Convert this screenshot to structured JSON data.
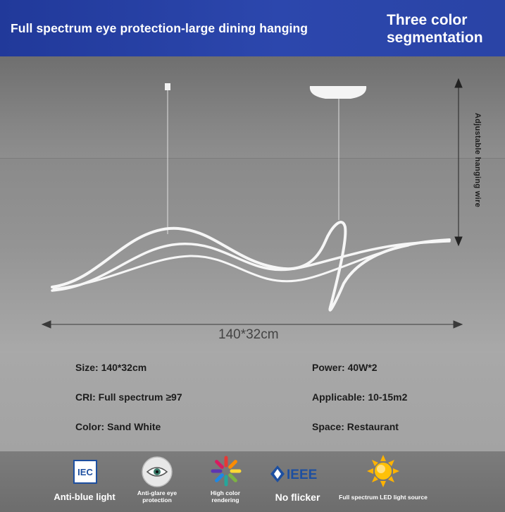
{
  "header": {
    "title": "Full spectrum eye protection-large dining hanging",
    "badge_line1": "Three color",
    "badge_line2": "segmentation"
  },
  "scene": {
    "hanging_wire_label": "Adjustable hanging wire",
    "dimension_label": "140*32cm"
  },
  "specs": {
    "size": "Size: 140*32cm",
    "power": "Power: 40W*2",
    "cri": "CRI: Full spectrum ≥97",
    "applicable": "Applicable: 10-15m2",
    "color": "Color: Sand White",
    "space": "Space: Restaurant"
  },
  "features": [
    {
      "icon": "iec-icon",
      "label": "Anti-blue light"
    },
    {
      "icon": "eye-icon",
      "label_line1": "Anti-glare eye",
      "label_line2": "protection"
    },
    {
      "icon": "color-wheel-icon",
      "label_line1": "High color",
      "label_line2": "rendering"
    },
    {
      "icon": "ieee-icon",
      "icon_text": "IEEE",
      "label": "No flicker"
    },
    {
      "icon": "sun-icon",
      "label": "Full spectrum LED light source"
    }
  ],
  "iec_icon_text": "IEC"
}
